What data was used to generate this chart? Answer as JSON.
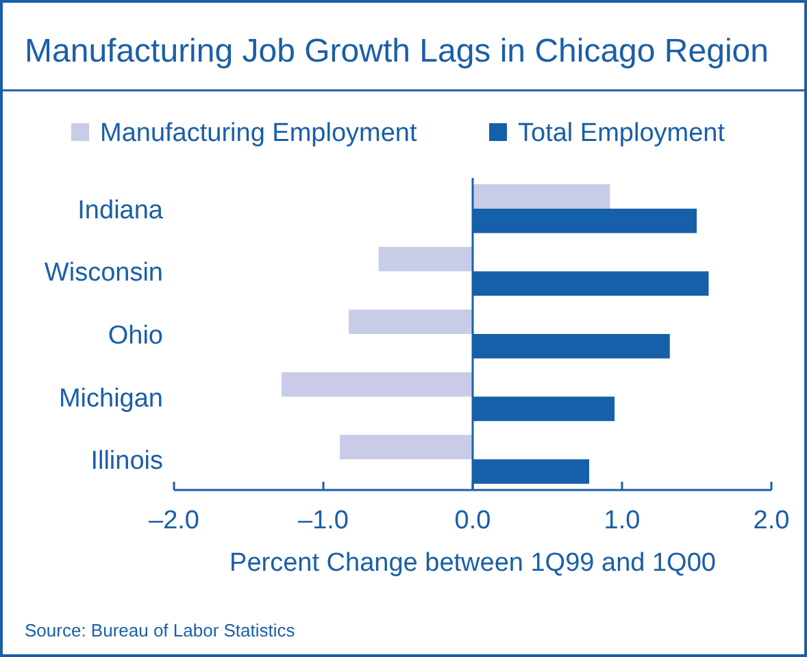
{
  "chart_data": {
    "type": "bar",
    "orientation": "horizontal",
    "title": "Manufacturing Job Growth Lags in Chicago Region",
    "xlabel": "Percent Change between 1Q99 and 1Q00",
    "categories": [
      "Indiana",
      "Wisconsin",
      "Ohio",
      "Michigan",
      "Illinois"
    ],
    "series": [
      {
        "name": "Manufacturing Employment",
        "color": "#c8cce6",
        "values": [
          0.92,
          -0.63,
          -0.83,
          -1.28,
          -0.89
        ]
      },
      {
        "name": "Total Employment",
        "color": "#1560a8",
        "values": [
          1.5,
          1.58,
          1.32,
          0.95,
          0.78
        ]
      }
    ],
    "xlim": [
      -2,
      2
    ],
    "xticks": [
      {
        "value": -2,
        "label": "–2.0"
      },
      {
        "value": -1,
        "label": "–1.0"
      },
      {
        "value": 0,
        "label": "0.0"
      },
      {
        "value": 1,
        "label": "1.0"
      },
      {
        "value": 2,
        "label": "2.0"
      }
    ],
    "ref_lines": [
      {
        "axis": "x",
        "value": 0
      }
    ],
    "legend": "top",
    "grid": false,
    "annotations": [
      "Source: Bureau of Labor Statistics"
    ]
  }
}
